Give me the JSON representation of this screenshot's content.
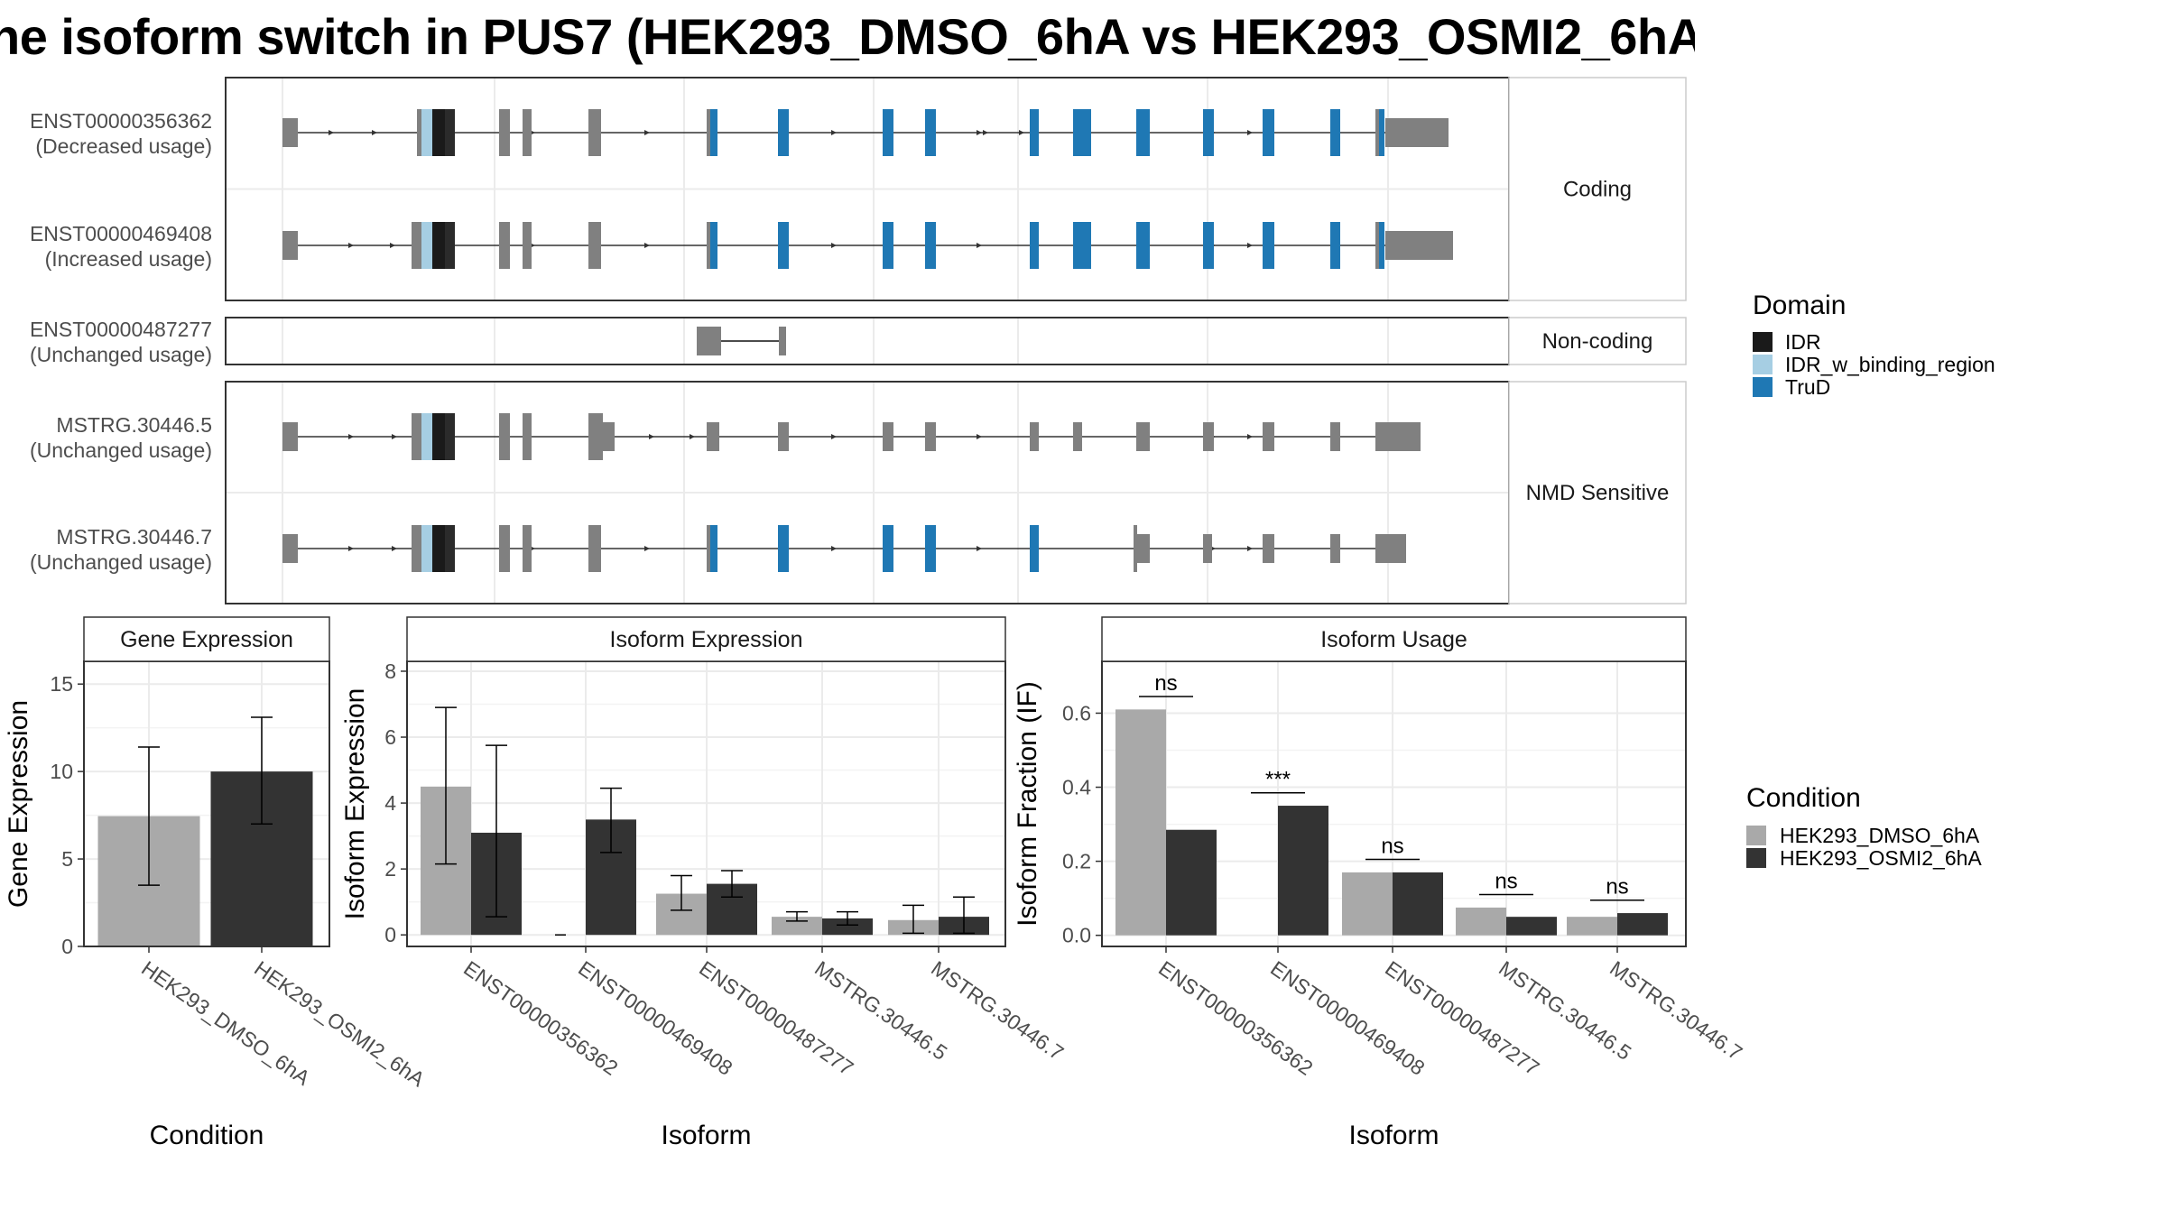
{
  "title": "he isoform switch in PUS7 (HEK293_DMSO_6hA vs HEK293_OSMI2_6hA",
  "colors": {
    "exon": "#808080",
    "IDR": "#1a1a1a",
    "IDR_w_binding_region": "#a6cee3",
    "TruD": "#1f78b4",
    "cond1": "#a9a9a9",
    "cond2": "#333333",
    "grid": "#ebebeb",
    "strip": "#ffffff"
  },
  "structure": {
    "facets": [
      {
        "label": "Coding",
        "transcripts": [
          {
            "id": "ENST00000356362",
            "note": "(Decreased usage)"
          },
          {
            "id": "ENST00000469408",
            "note": "(Increased usage)"
          }
        ]
      },
      {
        "label": "Non-coding",
        "transcripts": [
          {
            "id": "ENST00000487277",
            "note": "(Unchanged usage)"
          }
        ]
      },
      {
        "label": "NMD Sensitive",
        "transcripts": [
          {
            "id": "MSTRG.30446.5",
            "note": "(Unchanged usage)"
          },
          {
            "id": "MSTRG.30446.7",
            "note": "(Unchanged usage)"
          }
        ]
      }
    ],
    "legend": {
      "title": "Domain",
      "items": [
        {
          "name": "IDR",
          "color": "#1a1a1a"
        },
        {
          "name": "IDR_w_binding_region",
          "color": "#a6cee3"
        },
        {
          "name": "TruD",
          "color": "#1f78b4"
        }
      ]
    }
  },
  "chart_data": [
    {
      "type": "bar",
      "strip": "Gene Expression",
      "xlabel": "Condition",
      "ylabel": "Gene Expression",
      "categories": [
        "HEK293_DMSO_6hA",
        "HEK293_OSMI2_6hA"
      ],
      "ylim": [
        0,
        16.3
      ],
      "yticks": [
        0,
        5,
        10,
        15
      ],
      "series": [
        {
          "values": [
            7.45,
            10.0
          ],
          "err_low": [
            3.5,
            7.0
          ],
          "err_high": [
            11.4,
            13.1
          ],
          "colors": [
            "#a9a9a9",
            "#333333"
          ]
        }
      ]
    },
    {
      "type": "bar",
      "strip": "Isoform Expression",
      "xlabel": "Isoform",
      "ylabel": "Isoform Expression",
      "categories": [
        "ENST00000356362",
        "ENST00000469408",
        "ENST00000487277",
        "MSTRG.30446.5",
        "MSTRG.30446.7"
      ],
      "ylim": [
        -0.35,
        8.3
      ],
      "yticks": [
        0,
        2,
        4,
        6,
        8
      ],
      "series": [
        {
          "name": "HEK293_DMSO_6hA",
          "values": [
            4.5,
            0.0,
            1.25,
            0.55,
            0.45
          ],
          "err_low": [
            2.15,
            0.0,
            0.75,
            0.42,
            0.05
          ],
          "err_high": [
            6.9,
            0.0,
            1.8,
            0.7,
            0.9
          ]
        },
        {
          "name": "HEK293_OSMI2_6hA",
          "values": [
            3.1,
            3.5,
            1.55,
            0.5,
            0.55
          ],
          "err_low": [
            0.55,
            2.5,
            1.15,
            0.3,
            0.05
          ],
          "err_high": [
            5.75,
            4.45,
            1.95,
            0.7,
            1.15
          ]
        }
      ]
    },
    {
      "type": "bar",
      "strip": "Isoform Usage",
      "xlabel": "Isoform",
      "ylabel": "Isoform Fraction (IF)",
      "categories": [
        "ENST00000356362",
        "ENST00000469408",
        "ENST00000487277",
        "MSTRG.30446.5",
        "MSTRG.30446.7"
      ],
      "ylim": [
        -0.03,
        0.74
      ],
      "yticks": [
        0.0,
        0.2,
        0.4,
        0.6
      ],
      "series": [
        {
          "name": "HEK293_DMSO_6hA",
          "values": [
            0.61,
            0.0,
            0.17,
            0.075,
            0.05
          ]
        },
        {
          "name": "HEK293_OSMI2_6hA",
          "values": [
            0.285,
            0.35,
            0.17,
            0.05,
            0.06
          ]
        }
      ],
      "annotations": [
        {
          "category": "ENST00000356362",
          "text": "ns",
          "y": 0.645
        },
        {
          "category": "ENST00000469408",
          "text": "***",
          "y": 0.385
        },
        {
          "category": "ENST00000487277",
          "text": "ns",
          "y": 0.205
        },
        {
          "category": "MSTRG.30446.5",
          "text": "ns",
          "y": 0.11
        },
        {
          "category": "MSTRG.30446.7",
          "text": "ns",
          "y": 0.095
        }
      ]
    }
  ],
  "condition_legend": {
    "title": "Condition",
    "items": [
      {
        "name": "HEK293_DMSO_6hA",
        "color": "#a9a9a9"
      },
      {
        "name": "HEK293_OSMI2_6hA",
        "color": "#333333"
      }
    ]
  }
}
